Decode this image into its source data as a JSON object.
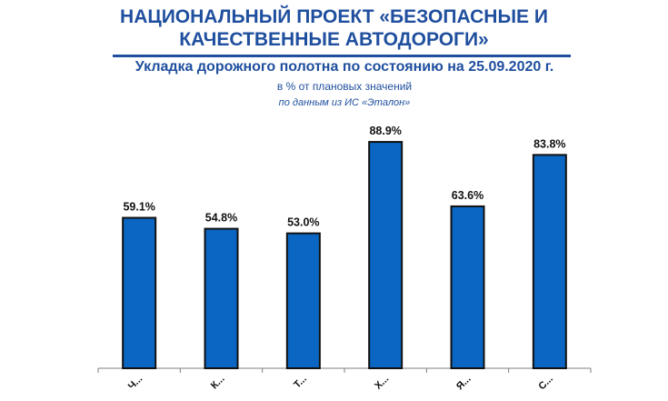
{
  "header": {
    "title_line1": "НАЦИОНАЛЬНЫЙ ПРОЕКТ «БЕЗОПАСНЫЕ И",
    "title_line2": "КАЧЕСТВЕННЫЕ АВТОДОРОГИ»"
  },
  "chart_data": {
    "type": "bar",
    "title": "Укладка дорожного полотна по состоянию на 25.09.2020 г.",
    "subtitle": "в % от плановых значений",
    "note": "по данным из ИС «Эталон»",
    "categories": [
      "Ч...",
      "К...",
      "Т...",
      "Х...",
      "Я...",
      "С..."
    ],
    "values": [
      59.1,
      54.8,
      53.0,
      88.9,
      63.6,
      83.8
    ],
    "value_labels": [
      "59.1%",
      "54.8%",
      "53.0%",
      "88.9%",
      "63.6%",
      "83.8%"
    ],
    "bar_color": "#0a66c2",
    "bar_outline": "#111111",
    "ylim": [
      0,
      100
    ],
    "grid": false,
    "legend": "none"
  }
}
